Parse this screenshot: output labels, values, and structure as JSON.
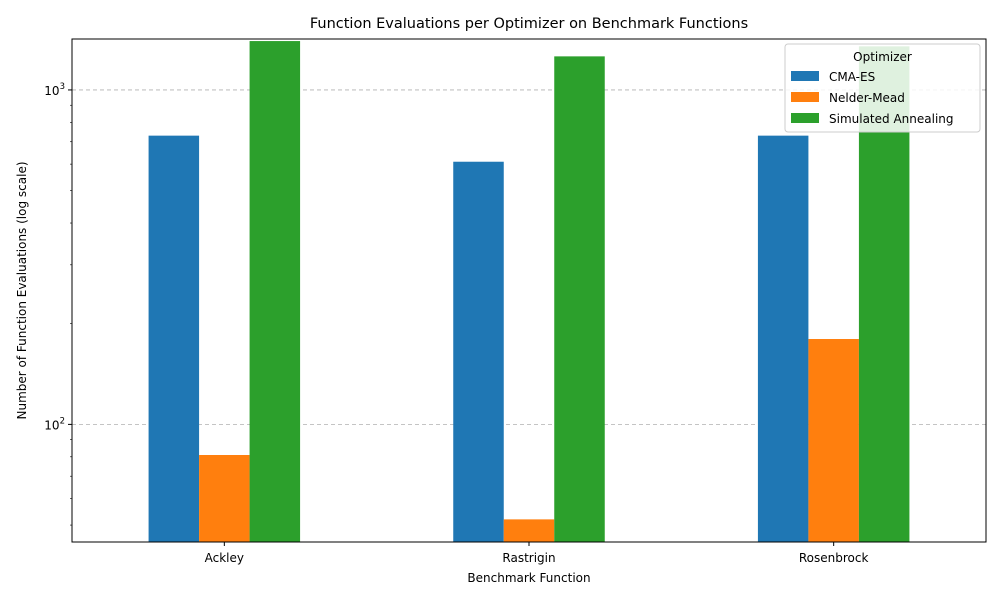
{
  "chart_data": {
    "type": "bar",
    "title": "Function Evaluations per Optimizer on Benchmark Functions",
    "xlabel": "Benchmark Function",
    "ylabel": "Number of Function Evaluations (log scale)",
    "y_scale": "log",
    "ylim": [
      44.5,
      1420
    ],
    "grid": "y-major",
    "legend": {
      "title": "Optimizer",
      "placement": "top-right"
    },
    "categories": [
      "Ackley",
      "Rastrigin",
      "Rosenbrock"
    ],
    "series": [
      {
        "name": "CMA-ES",
        "color": "#1f77b4",
        "values": [
          730,
          610,
          730
        ]
      },
      {
        "name": "Nelder-Mead",
        "color": "#ff7f0e",
        "values": [
          81,
          52,
          180
        ]
      },
      {
        "name": "Simulated Annealing",
        "color": "#2ca02c",
        "values": [
          1400,
          1260,
          1350
        ]
      }
    ],
    "y_ticks": [
      {
        "value": 100,
        "base": "10",
        "exp": "2"
      },
      {
        "value": 1000,
        "base": "10",
        "exp": "3"
      }
    ]
  }
}
